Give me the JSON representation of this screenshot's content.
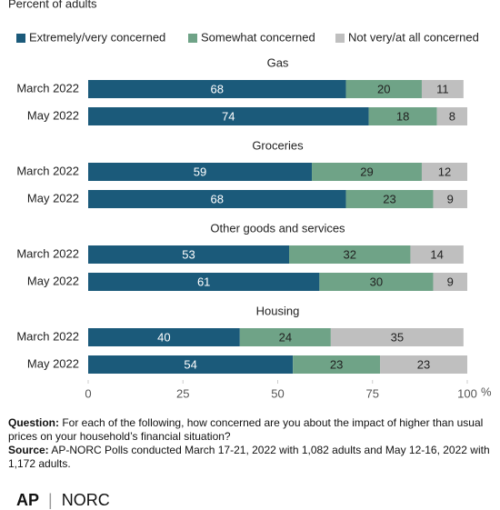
{
  "chart_data": {
    "type": "bar",
    "orientation": "horizontal",
    "stacked": true,
    "subtitle": "Percent of adults",
    "groups": [
      "Gas",
      "Groceries",
      "Other goods and services",
      "Housing"
    ],
    "categories": [
      "March 2022",
      "May 2022",
      "March 2022",
      "May 2022",
      "March 2022",
      "May 2022",
      "March 2022",
      "May 2022"
    ],
    "series": [
      {
        "name": "Extremely/very concerned",
        "color": "#1b5a7a",
        "values": [
          68,
          74,
          59,
          68,
          53,
          61,
          40,
          54
        ]
      },
      {
        "name": "Somewhat concerned",
        "color": "#6fa387",
        "values": [
          20,
          18,
          29,
          23,
          32,
          30,
          24,
          23
        ]
      },
      {
        "name": "Not very/at all concerned",
        "color": "#bfbfbf",
        "values": [
          11,
          8,
          12,
          9,
          14,
          9,
          35,
          23
        ]
      }
    ],
    "xlim": [
      0,
      100
    ],
    "xticks": [
      0,
      25,
      50,
      75,
      100
    ],
    "x_unit": "%",
    "legend": "top",
    "question_label": "Question:",
    "question": "For each of the following, how concerned are you about the impact of higher than usual prices on your household’s financial situation?",
    "source_label": "Source:",
    "source": "AP-NORC Polls conducted March 17-21, 2022 with 1,082 adults and May 12-16, 2022 with 1,172 adults.",
    "logos": [
      "AP",
      "NORC"
    ]
  }
}
